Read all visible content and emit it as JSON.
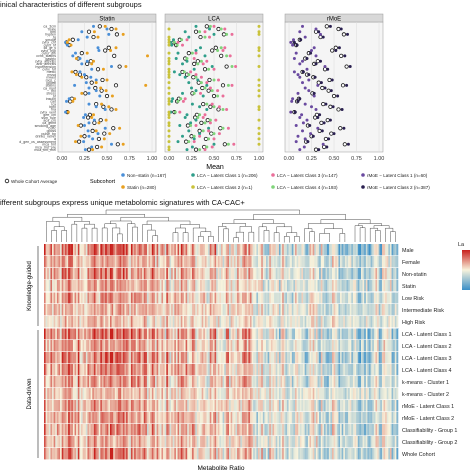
{
  "titles": {
    "top": "inical characteristics of different subgroups",
    "bottom": "ifferent subgroups express unique metabolomic signatures with CA-CAC+"
  },
  "colors": {
    "whole": "#111111",
    "nonstatin": "#4a8fd8",
    "statin": "#e8a020",
    "lca1": "#2f9e8a",
    "lca2": "#c9c23a",
    "lca3": "#ea6f9a",
    "lca4": "#7fd47a",
    "rmoe1": "#6a4aa0",
    "rmoe2": "#2a2050",
    "panel_header": "#d8d8d8",
    "panel_bg": "#f5f5f5",
    "heat_low": "#3a8fc8",
    "heat_mid": "#f8f3dc",
    "heat_high": "#c8201c"
  },
  "chart_data": [
    {
      "type": "scatter",
      "title": "inical characteristics of different subgroups",
      "xlabel": "Mean",
      "xlim": [
        0,
        1
      ],
      "xticks": [
        "0.00",
        "0.25",
        "0.50",
        "0.75",
        "1.00"
      ],
      "panels": [
        "Statin",
        "LCA",
        "rMoE"
      ],
      "grid": true,
      "legend_title": "Subcohort",
      "legend_position": "bottom",
      "legend": [
        {
          "key": "whole",
          "label": "Whole Cohort Average"
        },
        {
          "key": "nonstatin",
          "label": "Non−statin (n=167)"
        },
        {
          "key": "statin",
          "label": "Statin (n=280)"
        },
        {
          "key": "lca1",
          "label": "LCA − Latent Class 1 (n=206)"
        },
        {
          "key": "lca2",
          "label": "LCA − Latent Class 2 (n=1)"
        },
        {
          "key": "lca3",
          "label": "LCA − Latent Class 3 (n=147)"
        },
        {
          "key": "lca4",
          "label": "LCA − Latent Class 4 (n=193)"
        },
        {
          "key": "rmoe1",
          "label": "rMoE − Latent Class 1 (n=60)"
        },
        {
          "key": "rmoe2",
          "label": "rMoE − Latent Class 2 (n=387)"
        }
      ],
      "variables": [
        "ca_3cm",
        "male",
        "bmi",
        "hypten",
        "tg",
        "smoke",
        "cvhx_chf",
        "cvhx_hf",
        "ldl_gt_y",
        "cvhx_hyp",
        "cvhx_dm",
        "cvhx_statins",
        "gastric",
        "cvhx_arthritis",
        "anti_arthritis",
        "hypertension",
        "cvhx_hrt",
        "mexic",
        "mvsd",
        "mwed",
        "mcs_c",
        "lipidrb",
        "statins",
        "ca_mod",
        "fhx",
        "stress",
        "ht",
        "insulin",
        "cad",
        "lca",
        "bptx",
        "ma",
        "cvhx_vent",
        "gen_cm",
        "ssm_rule",
        "aca_cm",
        "ca_gtlmt",
        "smoking_age",
        "cohc",
        "gpcss",
        "pulse_bp",
        "drinks_never",
        "a",
        "d_gen_cs_assessment",
        "mca_tmt",
        "mca_tmt_pre",
        "mca_tmt_mel"
      ],
      "series": [
        {
          "panel": "Statin",
          "key": "whole",
          "values": [
            0.42,
            0.55,
            0.3,
            0.61,
            0.35,
            0.12,
            0.05,
            0.08,
            0.52,
            0.48,
            0.22,
            0.58,
            0.18,
            0.32,
            0.28,
            0.64,
            0.4,
            0.15,
            0.2,
            0.27,
            0.45,
            0.33,
            0.6,
            0.37,
            0.44,
            0.26,
            0.5,
            0.11,
            0.09,
            0.38,
            0.46,
            0.55,
            0.06,
            0.31,
            0.29,
            0.43,
            0.36,
            0.21,
            0.57,
            0.34,
            0.47,
            0.25,
            0.41,
            0.19,
            0.62,
            0.39,
            0.3
          ]
        },
        {
          "panel": "Statin",
          "key": "nonstatin",
          "values": [
            0.35,
            0.5,
            0.22,
            0.52,
            0.28,
            0.18,
            0.04,
            0.06,
            0.4,
            0.41,
            0.15,
            0.12,
            0.2,
            0.28,
            0.22,
            0.55,
            0.33,
            0.2,
            0.25,
            0.32,
            0.38,
            0.27,
            0.14,
            0.3,
            0.38,
            0.3,
            0.42,
            0.08,
            0.05,
            0.3,
            0.38,
            0.48,
            0.04,
            0.26,
            0.24,
            0.36,
            0.3,
            0.25,
            0.48,
            0.29,
            0.4,
            0.3,
            0.34,
            0.24,
            0.55,
            0.33,
            0.26
          ]
        },
        {
          "panel": "Statin",
          "key": "statin",
          "values": [
            0.48,
            0.6,
            0.36,
            0.68,
            0.4,
            0.08,
            0.06,
            0.1,
            0.6,
            0.54,
            0.28,
            0.95,
            0.16,
            0.35,
            0.33,
            0.71,
            0.46,
            0.11,
            0.16,
            0.22,
            0.5,
            0.38,
            0.93,
            0.43,
            0.49,
            0.22,
            0.56,
            0.14,
            0.12,
            0.44,
            0.52,
            0.6,
            0.07,
            0.35,
            0.33,
            0.49,
            0.41,
            0.18,
            0.64,
            0.38,
            0.53,
            0.21,
            0.47,
            0.15,
            0.68,
            0.44,
            0.34
          ]
        },
        {
          "panel": "LCA",
          "key": "whole",
          "values": [
            0.42,
            0.55,
            0.3,
            0.61,
            0.35,
            0.12,
            0.05,
            0.08,
            0.52,
            0.48,
            0.22,
            0.58,
            0.18,
            0.32,
            0.28,
            0.64,
            0.4,
            0.15,
            0.2,
            0.27,
            0.45,
            0.33,
            0.6,
            0.37,
            0.44,
            0.26,
            0.5,
            0.11,
            0.09,
            0.38,
            0.46,
            0.55,
            0.06,
            0.31,
            0.29,
            0.43,
            0.36,
            0.21,
            0.57,
            0.34,
            0.47,
            0.25,
            0.41,
            0.19,
            0.62,
            0.39,
            0.3
          ]
        },
        {
          "panel": "LCA",
          "key": "lca1",
          "values": [
            0.3,
            0.45,
            0.18,
            0.5,
            0.22,
            0.05,
            0.02,
            0.03,
            0.35,
            0.3,
            0.1,
            0.4,
            0.08,
            0.2,
            0.15,
            0.48,
            0.28,
            0.06,
            0.12,
            0.18,
            0.32,
            0.22,
            0.42,
            0.25,
            0.3,
            0.15,
            0.38,
            0.04,
            0.03,
            0.26,
            0.34,
            0.42,
            0.02,
            0.2,
            0.18,
            0.3,
            0.24,
            0.12,
            0.44,
            0.22,
            0.34,
            0.15,
            0.28,
            0.1,
            0.5,
            0.26,
            0.2
          ]
        },
        {
          "panel": "LCA",
          "key": "lca2",
          "values": [
            1.0,
            0.0,
            1.0,
            1.0,
            0.0,
            0.0,
            0.0,
            0.0,
            1.0,
            1.0,
            0.0,
            1.0,
            0.0,
            0.0,
            0.0,
            1.0,
            0.0,
            0.0,
            0.0,
            0.0,
            1.0,
            0.0,
            1.0,
            0.0,
            1.0,
            0.0,
            1.0,
            0.0,
            0.0,
            0.0,
            1.0,
            1.0,
            0.0,
            0.0,
            0.0,
            1.0,
            0.0,
            0.0,
            1.0,
            0.0,
            1.0,
            0.0,
            1.0,
            0.0,
            1.0,
            0.0,
            0.0
          ]
        },
        {
          "panel": "LCA",
          "key": "lca3",
          "values": [
            0.5,
            0.62,
            0.4,
            0.7,
            0.45,
            0.2,
            0.1,
            0.15,
            0.62,
            0.6,
            0.3,
            0.68,
            0.28,
            0.42,
            0.38,
            0.74,
            0.5,
            0.24,
            0.3,
            0.36,
            0.55,
            0.42,
            0.7,
            0.46,
            0.54,
            0.35,
            0.6,
            0.18,
            0.16,
            0.48,
            0.56,
            0.64,
            0.12,
            0.4,
            0.38,
            0.52,
            0.46,
            0.3,
            0.66,
            0.44,
            0.56,
            0.34,
            0.5,
            0.28,
            0.72,
            0.48,
            0.4
          ]
        },
        {
          "panel": "LCA",
          "key": "lca4",
          "values": [
            0.46,
            0.58,
            0.34,
            0.64,
            0.4,
            0.14,
            0.06,
            0.09,
            0.58,
            0.54,
            0.26,
            0.64,
            0.2,
            0.36,
            0.32,
            0.7,
            0.44,
            0.17,
            0.22,
            0.3,
            0.5,
            0.36,
            0.66,
            0.4,
            0.48,
            0.28,
            0.54,
            0.13,
            0.1,
            0.42,
            0.5,
            0.6,
            0.07,
            0.34,
            0.32,
            0.46,
            0.4,
            0.24,
            0.6,
            0.38,
            0.5,
            0.28,
            0.44,
            0.22,
            0.66,
            0.42,
            0.34
          ]
        },
        {
          "panel": "rMoE",
          "key": "whole",
          "values": [
            0.42,
            0.55,
            0.3,
            0.61,
            0.35,
            0.12,
            0.05,
            0.08,
            0.52,
            0.48,
            0.22,
            0.58,
            0.18,
            0.32,
            0.28,
            0.64,
            0.4,
            0.15,
            0.2,
            0.27,
            0.45,
            0.33,
            0.6,
            0.37,
            0.44,
            0.26,
            0.5,
            0.11,
            0.09,
            0.38,
            0.46,
            0.55,
            0.06,
            0.31,
            0.29,
            0.43,
            0.36,
            0.21,
            0.57,
            0.34,
            0.47,
            0.25,
            0.41,
            0.19,
            0.62,
            0.39,
            0.3
          ]
        },
        {
          "panel": "rMoE",
          "key": "rmoe1",
          "values": [
            0.15,
            0.3,
            0.12,
            0.35,
            0.18,
            0.05,
            0.02,
            0.04,
            0.28,
            0.25,
            0.08,
            0.3,
            0.06,
            0.15,
            0.12,
            0.4,
            0.2,
            0.06,
            0.1,
            0.12,
            0.22,
            0.15,
            0.32,
            0.18,
            0.22,
            0.1,
            0.28,
            0.04,
            0.03,
            0.18,
            0.25,
            0.3,
            0.02,
            0.14,
            0.12,
            0.2,
            0.16,
            0.08,
            0.32,
            0.15,
            0.24,
            0.1,
            0.18,
            0.08,
            0.38,
            0.17,
            0.12
          ]
        },
        {
          "panel": "rMoE",
          "key": "rmoe2",
          "values": [
            0.46,
            0.58,
            0.33,
            0.65,
            0.38,
            0.13,
            0.06,
            0.09,
            0.56,
            0.52,
            0.24,
            0.62,
            0.2,
            0.35,
            0.3,
            0.68,
            0.43,
            0.16,
            0.22,
            0.29,
            0.48,
            0.36,
            0.64,
            0.4,
            0.47,
            0.28,
            0.54,
            0.12,
            0.1,
            0.41,
            0.49,
            0.59,
            0.07,
            0.34,
            0.32,
            0.46,
            0.39,
            0.23,
            0.61,
            0.37,
            0.5,
            0.27,
            0.44,
            0.21,
            0.66,
            0.42,
            0.33
          ]
        }
      ]
    },
    {
      "type": "heatmap",
      "title": "ifferent subgroups express unique metabolomic signatures with CA-CAC+",
      "xlabel": "Metabolite Ratio",
      "legend_title": "La",
      "row_groups": [
        "Knowledge-guided",
        "Data-driven"
      ],
      "rows": [
        "Male",
        "Female",
        "Non-statin",
        "Statin",
        "Low Risk",
        "Intermediate Risk",
        "High Risk",
        "LCA - Latent Class 1",
        "LCA - Latent Class 2",
        "LCA - Latent Class 3",
        "LCA - Latent Class 4",
        "k-means - Cluster 1",
        "k-means - Cluster 2",
        "rMoE - Latent Class 1",
        "rMoE - Latent Class 2",
        "Classifiability - Group 1",
        "Classifiability - Group 2",
        "Whole Cohort"
      ],
      "profiles": [
        0.95,
        0.55,
        0.7,
        0.5,
        0.6,
        0.45,
        0.35,
        0.9,
        0.6,
        0.85,
        0.7,
        0.65,
        0.4,
        0.55,
        0.62,
        0.7,
        0.5,
        0.75
      ]
    }
  ]
}
